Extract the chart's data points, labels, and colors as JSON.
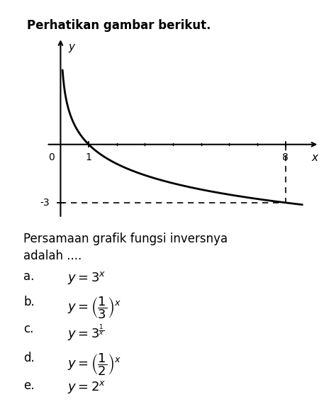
{
  "title": "Perhatikan gambar berikut.",
  "question_line1": "Persamaan grafik fungsi inversnya",
  "question_line2": "adalah ....",
  "option_labels": [
    "a.",
    "b.",
    "c.",
    "d.",
    "e."
  ],
  "option_maths": [
    "$y = 3^x$",
    "$y = \\left(\\dfrac{1}{3}\\right)^x$",
    "$y = 3^{\\frac{1}{x}}$",
    "$y = \\left(\\dfrac{1}{2}\\right)^x$",
    "$y = 2^x$"
  ],
  "graph": {
    "xlim": [
      -0.6,
      9.2
    ],
    "ylim": [
      -4.0,
      5.5
    ],
    "dashed_x": 8,
    "dashed_y": -3,
    "curve_xmin": 0.07,
    "curve_xmax": 8.6
  },
  "bg_color": "#ffffff",
  "text_color": "#000000"
}
